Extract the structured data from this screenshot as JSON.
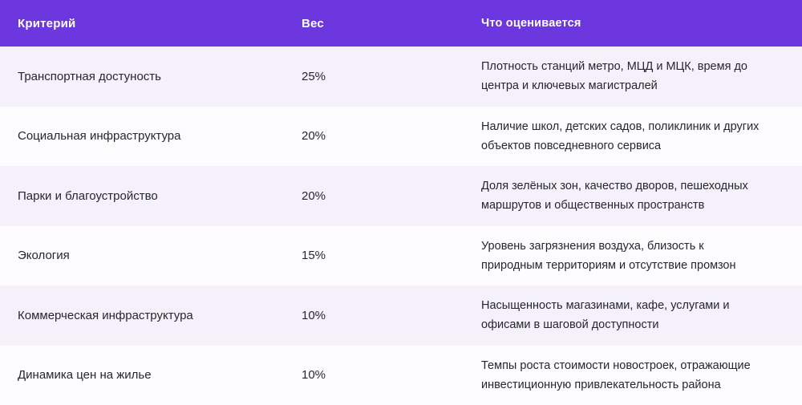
{
  "table": {
    "columns": [
      {
        "key": "criterion",
        "label": "Критерий"
      },
      {
        "key": "weight",
        "label": "Вес"
      },
      {
        "key": "description",
        "label": "Что оценивается"
      }
    ],
    "rows": [
      {
        "criterion": "Транспортная достуность",
        "weight": "25%",
        "description": "Плотность станций метро, МЦД и МЦК, время до центра и ключевых магистралей"
      },
      {
        "criterion": "Социальная инфраструктура",
        "weight": "20%",
        "description": "Наличие школ, детских садов, поликлиник и других объектов повседневного сервиса"
      },
      {
        "criterion": "Парки и благоустройство",
        "weight": "20%",
        "description": "Доля зелёных зон, качество дворов, пешеходных маршрутов и общественных пространств"
      },
      {
        "criterion": "Экология",
        "weight": "15%",
        "description": "Уровень загрязнения воздуха, близость к природным территориям и отсутствие промзон"
      },
      {
        "criterion": "Коммерческая инфраструктура",
        "weight": "10%",
        "description": "Насыщенность магазинами, кафе, услугами и офисами в шаговой доступности"
      },
      {
        "criterion": "Динамика цен на жилье",
        "weight": "10%",
        "description": "Темпы роста стоимости новостроек, отражающие инвестиционную привлекательность района"
      }
    ],
    "colors": {
      "header_bg": "#6C37DE",
      "header_text": "#FFFFFF",
      "row_odd_bg": "#F4F1FB",
      "row_even_bg": "#FDFDFF",
      "body_text": "#26262E"
    }
  },
  "chart_data": {
    "type": "table",
    "title": "",
    "columns": [
      "Критерий",
      "Вес",
      "Что оценивается"
    ],
    "categories": [
      "Транспортная достуность",
      "Социальная инфраструктура",
      "Парки и благоустройство",
      "Экология",
      "Коммерческая инфраструктура",
      "Динамика цен на жилье"
    ],
    "values": [
      25,
      20,
      20,
      15,
      10,
      10
    ],
    "value_unit": "%",
    "descriptions": [
      "Плотность станций метро, МЦД и МЦК, время до центра и ключевых магистралей",
      "Наличие школ, детских садов, поликлиник и других объектов повседневного сервиса",
      "Доля зелёных зон, качество дворов, пешеходных маршрутов и общественных пространств",
      "Уровень загрязнения воздуха, близость к природным территориям и отсутствие промзон",
      "Насыщенность магазинами, кафе, услугами и офисами в шаговой доступности",
      "Темпы роста стоимости новостроек, отражающие инвестиционную привлекательность района"
    ]
  }
}
